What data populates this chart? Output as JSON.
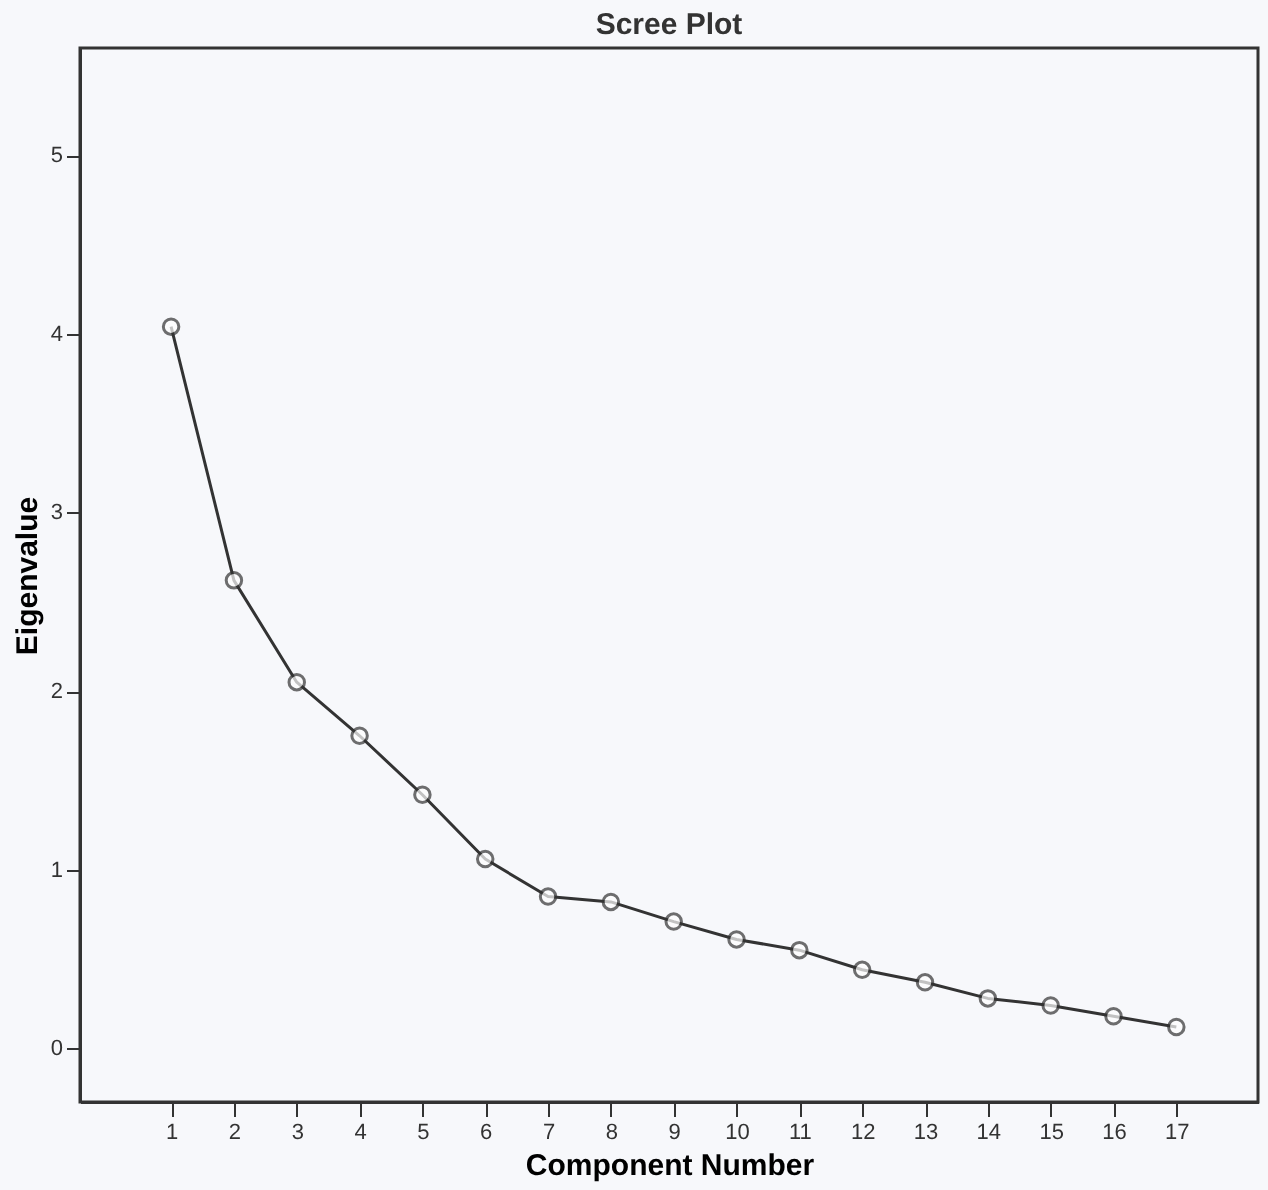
{
  "chart_data": {
    "type": "line",
    "title": "Scree Plot",
    "xlabel": "Component Number",
    "ylabel": "Eigenvalue",
    "x": [
      1,
      2,
      3,
      4,
      5,
      6,
      7,
      8,
      9,
      10,
      11,
      12,
      13,
      14,
      15,
      16,
      17
    ],
    "series": [
      {
        "color": "#333333",
        "values": [
          4.04,
          2.62,
          2.05,
          1.75,
          1.42,
          1.06,
          0.85,
          0.82,
          0.71,
          0.61,
          0.55,
          0.44,
          0.37,
          0.28,
          0.24,
          0.18,
          0.12
        ]
      }
    ],
    "xlim": [
      -0.45,
      18.3
    ],
    "xticks": [
      1,
      2,
      3,
      4,
      5,
      6,
      7,
      8,
      9,
      10,
      11,
      12,
      13,
      14,
      15,
      16,
      17
    ],
    "ylim": [
      -0.3,
      5.6
    ],
    "yticks": [
      0,
      1,
      2,
      3,
      4,
      5
    ],
    "marker": "circle",
    "line_style": "solid",
    "grid": false,
    "legend": false
  }
}
